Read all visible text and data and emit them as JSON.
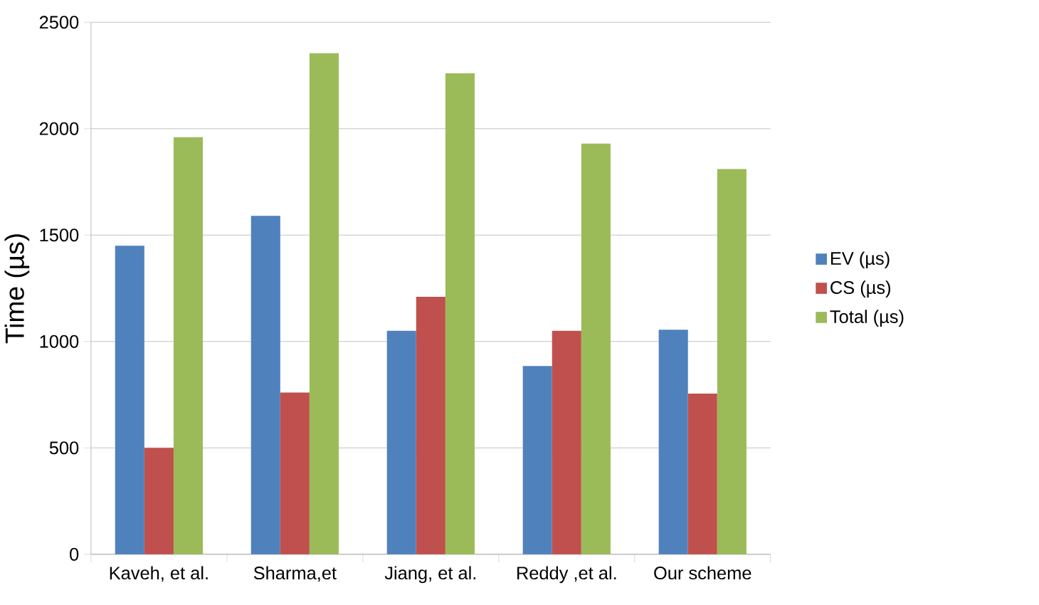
{
  "chart_data": {
    "type": "bar",
    "ylabel": "Time (µs)",
    "categories": [
      "Kaveh, et al.",
      "Sharma,et",
      "Jiang, et al.",
      "Reddy ,et al.",
      "Our scheme"
    ],
    "series": [
      {
        "name": "EV (µs)",
        "color": "#4f81bd",
        "values": [
          1450,
          1590,
          1050,
          885,
          1055
        ]
      },
      {
        "name": "CS (µs)",
        "color": "#c0504d",
        "values": [
          500,
          760,
          1210,
          1050,
          755
        ]
      },
      {
        "name": "Total (µs)",
        "color": "#9bbb59",
        "values": [
          1960,
          2355,
          2260,
          1930,
          1810
        ]
      }
    ],
    "ylim": [
      0,
      2500
    ],
    "yticks": [
      0,
      500,
      1000,
      1500,
      2000,
      2500
    ],
    "grid": "y",
    "legend": "right"
  }
}
